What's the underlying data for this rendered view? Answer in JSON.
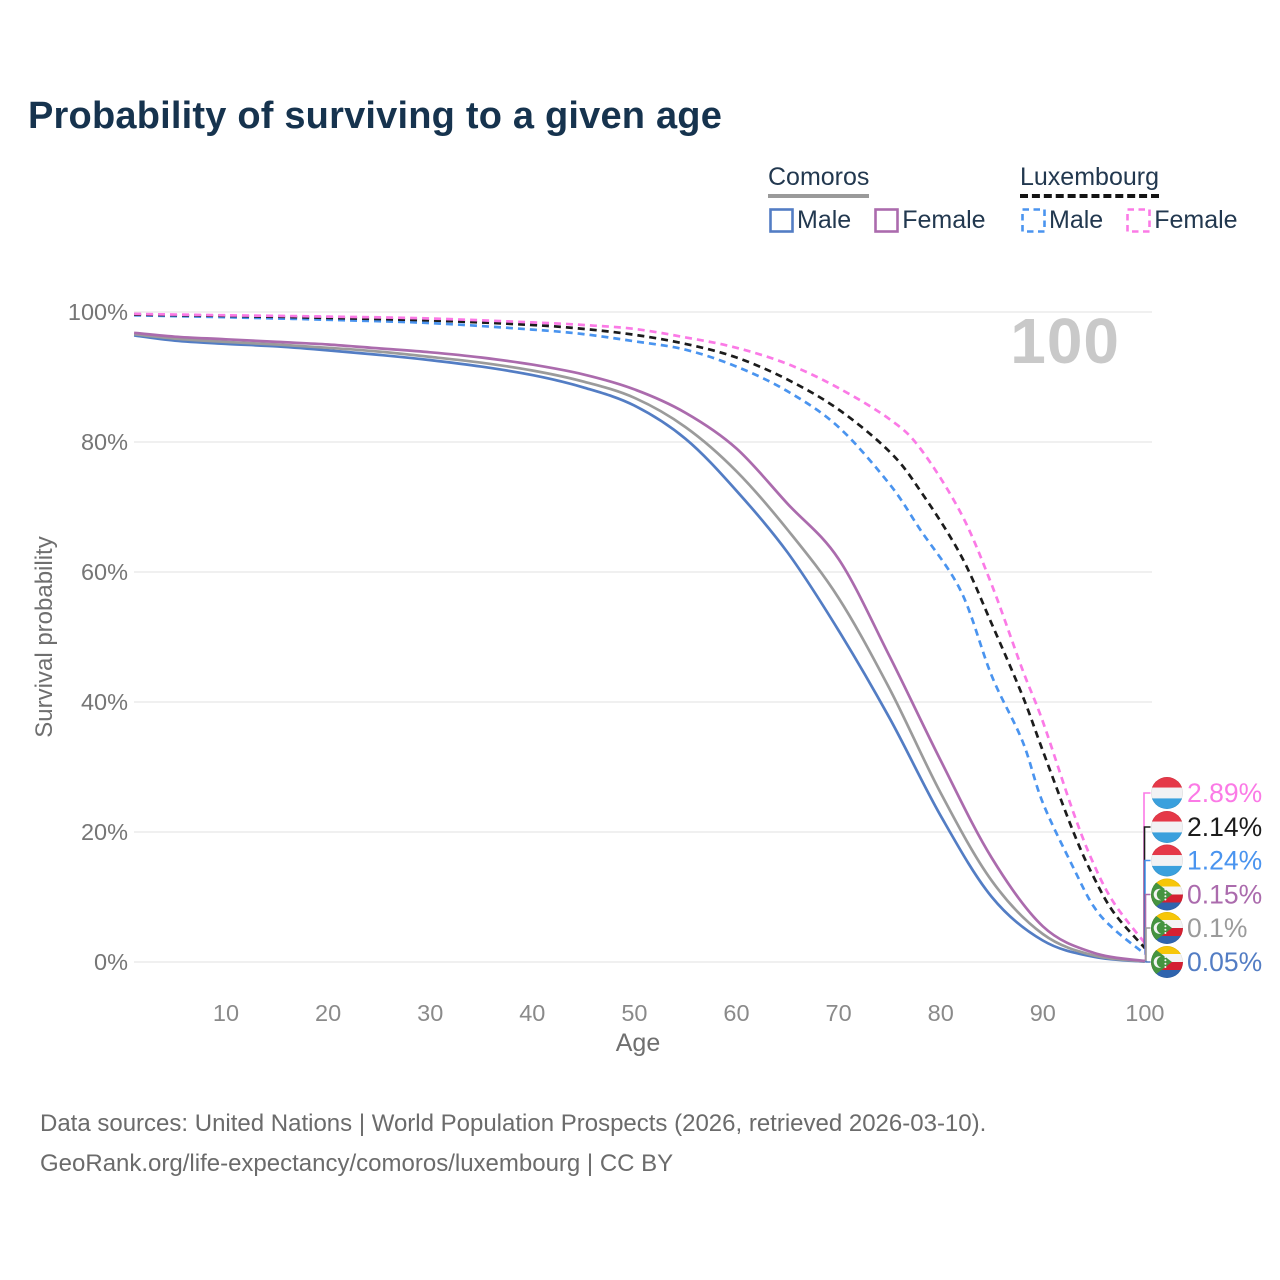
{
  "title": "Probability of surviving to a given age",
  "watermark": "100",
  "legend": {
    "comoros": {
      "name": "Comoros",
      "male_label": "Male",
      "female_label": "Female",
      "male_color": "#537dc4",
      "female_color": "#ab6bad",
      "underline_color": "#9a9a9a"
    },
    "luxembourg": {
      "name": "Luxembourg",
      "male_label": "Male",
      "female_label": "Female",
      "male_color": "#4a94ef",
      "female_color": "#fb7ae6",
      "underline_color": "#141414"
    }
  },
  "axes": {
    "y_title": "Survival probability",
    "x_title": "Age",
    "y_ticks": [
      "100%",
      "80%",
      "60%",
      "40%",
      "20%",
      "0%"
    ],
    "y_tick_values": [
      100,
      80,
      60,
      40,
      20,
      0
    ],
    "x_ticks": [
      "10",
      "20",
      "30",
      "40",
      "50",
      "60",
      "70",
      "80",
      "90",
      "100"
    ],
    "x_tick_values": [
      10,
      20,
      30,
      40,
      50,
      60,
      70,
      80,
      90,
      100
    ]
  },
  "end_labels": [
    {
      "text": "2.89%",
      "value": 2.89,
      "color": "#fb7ae6",
      "flag": "luxembourg"
    },
    {
      "text": "2.14%",
      "value": 2.14,
      "color": "#1c1c1c",
      "flag": "luxembourg"
    },
    {
      "text": "1.24%",
      "value": 1.24,
      "color": "#4a94ef",
      "flag": "luxembourg"
    },
    {
      "text": "0.15%",
      "value": 0.15,
      "color": "#ab6bad",
      "flag": "comoros"
    },
    {
      "text": "0.1%",
      "value": 0.1,
      "color": "#9b9b9b",
      "flag": "comoros"
    },
    {
      "text": "0.05%",
      "value": 0.05,
      "color": "#537dc4",
      "flag": "comoros"
    }
  ],
  "footer": {
    "line1": "Data sources: United Nations | World Population Prospects (2026, retrieved 2026-03-10).",
    "line2": "GeoRank.org/life-expectancy/comoros/luxembourg | CC BY"
  },
  "flag_colors": {
    "luxembourg": {
      "red": "#e53848",
      "white": "#f2f2f4",
      "blue": "#3aa0dd"
    },
    "comoros": {
      "yellow": "#f7c608",
      "white": "#f4f4f4",
      "red": "#d42032",
      "blue": "#2f64ae",
      "green": "#459440"
    }
  },
  "chart_data": {
    "type": "line",
    "title": "Probability of surviving to a given age",
    "xlabel": "Age",
    "ylabel": "Survival probability",
    "xlim": [
      1,
      100
    ],
    "ylim": [
      0,
      100
    ],
    "grid": "horizontal",
    "legend_position": "top-right",
    "series": [
      {
        "id": "comoros-male",
        "name": "Comoros Male",
        "country": "Comoros",
        "sex": "male",
        "style": "solid",
        "color": "#537dc4",
        "end_value_pct": 0.05,
        "points": [
          [
            1,
            96.4
          ],
          [
            5,
            95.6
          ],
          [
            10,
            95.1
          ],
          [
            15,
            94.7
          ],
          [
            20,
            94.1
          ],
          [
            25,
            93.4
          ],
          [
            30,
            92.6
          ],
          [
            35,
            91.6
          ],
          [
            40,
            90.3
          ],
          [
            45,
            88.4
          ],
          [
            50,
            85.6
          ],
          [
            55,
            80.5
          ],
          [
            60,
            72.5
          ],
          [
            65,
            63
          ],
          [
            70,
            51
          ],
          [
            75,
            37.5
          ],
          [
            80,
            22.5
          ],
          [
            85,
            10
          ],
          [
            90,
            3.3
          ],
          [
            95,
            0.8
          ],
          [
            100,
            0.05
          ]
        ]
      },
      {
        "id": "comoros-total",
        "name": "Comoros Total",
        "country": "Comoros",
        "sex": "both",
        "style": "solid",
        "color": "#9b9b9b",
        "end_value_pct": 0.1,
        "points": [
          [
            1,
            96.6
          ],
          [
            5,
            95.9
          ],
          [
            10,
            95.4
          ],
          [
            15,
            95
          ],
          [
            20,
            94.5
          ],
          [
            25,
            93.9
          ],
          [
            30,
            93.1
          ],
          [
            35,
            92.2
          ],
          [
            40,
            91
          ],
          [
            45,
            89.3
          ],
          [
            50,
            86.8
          ],
          [
            55,
            82.3
          ],
          [
            60,
            75.5
          ],
          [
            65,
            66.5
          ],
          [
            70,
            56
          ],
          [
            75,
            42
          ],
          [
            80,
            26
          ],
          [
            85,
            12.5
          ],
          [
            90,
            4.3
          ],
          [
            95,
            1
          ],
          [
            100,
            0.1
          ]
        ]
      },
      {
        "id": "comoros-female",
        "name": "Comoros Female",
        "country": "Comoros",
        "sex": "female",
        "style": "solid",
        "color": "#ab6bad",
        "end_value_pct": 0.15,
        "points": [
          [
            1,
            96.8
          ],
          [
            5,
            96.2
          ],
          [
            10,
            95.8
          ],
          [
            15,
            95.4
          ],
          [
            20,
            95
          ],
          [
            25,
            94.4
          ],
          [
            30,
            93.8
          ],
          [
            35,
            93
          ],
          [
            40,
            91.9
          ],
          [
            45,
            90.4
          ],
          [
            50,
            88.1
          ],
          [
            55,
            84.5
          ],
          [
            60,
            79
          ],
          [
            65,
            70.5
          ],
          [
            70,
            62
          ],
          [
            75,
            47
          ],
          [
            80,
            31
          ],
          [
            85,
            16
          ],
          [
            90,
            5.5
          ],
          [
            95,
            1.4
          ],
          [
            100,
            0.15
          ]
        ]
      },
      {
        "id": "luxembourg-male",
        "name": "Luxembourg Male",
        "country": "Luxembourg",
        "sex": "male",
        "style": "dashed",
        "color": "#4a94ef",
        "end_value_pct": 1.24,
        "points": [
          [
            1,
            99.5
          ],
          [
            10,
            99.2
          ],
          [
            20,
            98.8
          ],
          [
            30,
            98.3
          ],
          [
            40,
            97.3
          ],
          [
            45,
            96.6
          ],
          [
            50,
            95.5
          ],
          [
            55,
            94.2
          ],
          [
            60,
            91.6
          ],
          [
            65,
            87.8
          ],
          [
            70,
            82.3
          ],
          [
            75,
            73.5
          ],
          [
            78,
            66.5
          ],
          [
            82,
            57
          ],
          [
            85,
            44
          ],
          [
            88,
            34
          ],
          [
            90,
            24.5
          ],
          [
            93,
            14.5
          ],
          [
            95,
            8.5
          ],
          [
            97,
            5
          ],
          [
            100,
            1.24
          ]
        ]
      },
      {
        "id": "luxembourg-total",
        "name": "Luxembourg Total",
        "country": "Luxembourg",
        "sex": "both",
        "style": "dashed",
        "color": "#1c1c1c",
        "end_value_pct": 2.14,
        "points": [
          [
            1,
            99.6
          ],
          [
            10,
            99.4
          ],
          [
            20,
            99.1
          ],
          [
            30,
            98.7
          ],
          [
            40,
            98
          ],
          [
            45,
            97.4
          ],
          [
            50,
            96.5
          ],
          [
            55,
            95.1
          ],
          [
            60,
            93
          ],
          [
            65,
            89.6
          ],
          [
            70,
            85
          ],
          [
            75,
            78.5
          ],
          [
            78,
            72.5
          ],
          [
            82,
            62.5
          ],
          [
            85,
            52
          ],
          [
            88,
            41
          ],
          [
            90,
            32.5
          ],
          [
            93,
            20
          ],
          [
            95,
            13
          ],
          [
            97,
            7.5
          ],
          [
            100,
            2.14
          ]
        ]
      },
      {
        "id": "luxembourg-female",
        "name": "Luxembourg Female",
        "country": "Luxembourg",
        "sex": "female",
        "style": "dashed",
        "color": "#fb7ae6",
        "end_value_pct": 2.89,
        "points": [
          [
            1,
            99.7
          ],
          [
            10,
            99.5
          ],
          [
            20,
            99.3
          ],
          [
            30,
            99
          ],
          [
            40,
            98.4
          ],
          [
            45,
            98
          ],
          [
            50,
            97.4
          ],
          [
            55,
            96.1
          ],
          [
            60,
            94.5
          ],
          [
            65,
            92
          ],
          [
            70,
            88.3
          ],
          [
            75,
            83.5
          ],
          [
            78,
            79
          ],
          [
            82,
            69
          ],
          [
            85,
            58
          ],
          [
            88,
            45
          ],
          [
            90,
            37
          ],
          [
            93,
            23
          ],
          [
            95,
            15
          ],
          [
            97,
            9
          ],
          [
            100,
            2.89
          ]
        ]
      }
    ]
  }
}
